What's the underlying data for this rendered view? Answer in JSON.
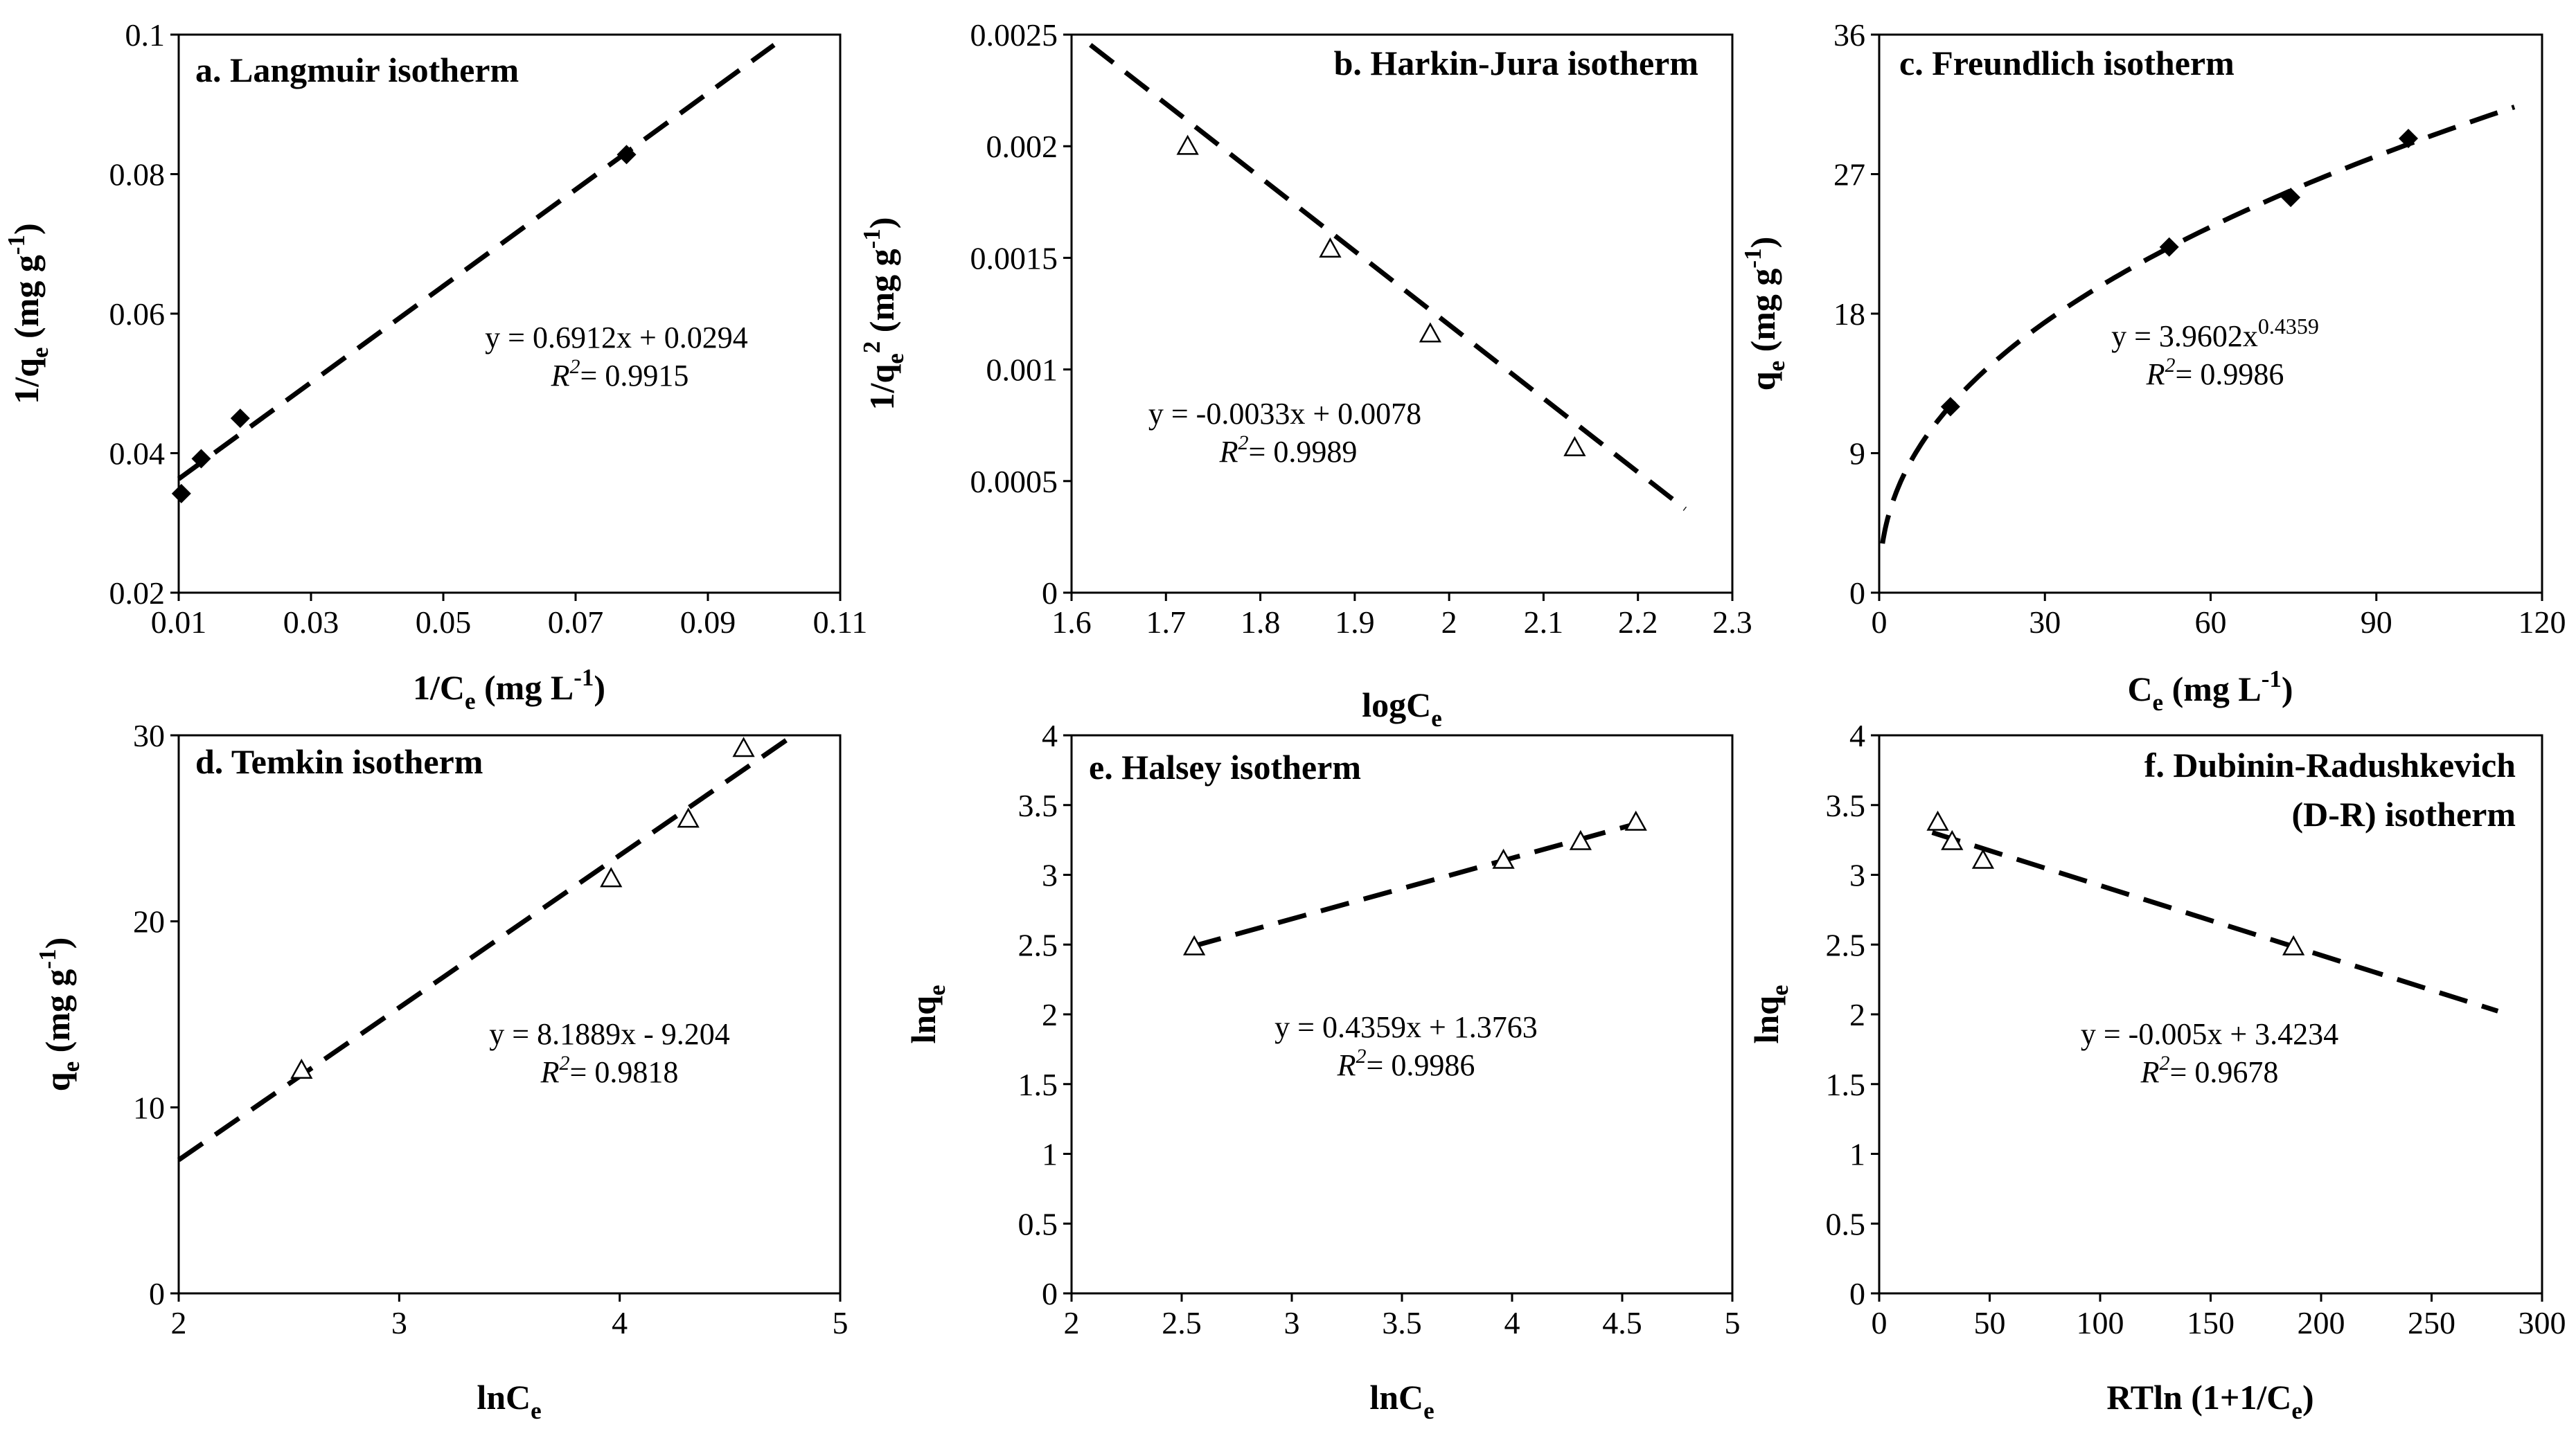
{
  "chart_data": [
    {
      "id": "a",
      "type": "scatter",
      "title": "a. Langmuir isotherm",
      "xlabel": {
        "main": "1/C",
        "sub": "e",
        "rest": " (mg L",
        "sup": "-1",
        "end": ")"
      },
      "ylabel": {
        "main": "1/q",
        "sub": "e",
        "rest": " (mg g",
        "sup": "-1",
        "end": ")"
      },
      "xlim": [
        0.01,
        0.11
      ],
      "ylim": [
        0.02,
        0.1
      ],
      "xticks": [
        "0.01",
        "0.03",
        "0.05",
        "0.07",
        "0.09",
        "0.11"
      ],
      "yticks": [
        "0.02",
        "0.04",
        "0.06",
        "0.08",
        "0.1"
      ],
      "marker": "diamond",
      "points": [
        {
          "x": 0.0104,
          "y": 0.0342
        },
        {
          "x": 0.0134,
          "y": 0.0392
        },
        {
          "x": 0.0193,
          "y": 0.045
        },
        {
          "x": 0.0777,
          "y": 0.0828
        }
      ],
      "fit": {
        "kind": "linear",
        "slope": 0.6912,
        "intercept": 0.0294,
        "xrange": [
          0.01,
          0.1
        ]
      },
      "equation": {
        "pre": "y = 0.6912x + 0.0294",
        "sup": ""
      },
      "r2": "= 0.9915"
    },
    {
      "id": "b",
      "type": "scatter",
      "title": "b. Harkin-Jura isotherm",
      "xlabel": {
        "main": "logC",
        "sub": "e",
        "rest": "",
        "sup": "",
        "end": ""
      },
      "ylabel": {
        "main": "1/q",
        "sub": "e",
        "rest": " (mg g",
        "sup": "-1",
        "end": ")",
        "sup2": "2"
      },
      "xlim": [
        1.6,
        2.3
      ],
      "ylim": [
        0,
        0.0025
      ],
      "xticks": [
        "1.6",
        "1.7",
        "1.8",
        "1.9",
        "2",
        "2.1",
        "2.2",
        "2.3"
      ],
      "yticks": [
        "0",
        "0.0005",
        "0.001",
        "0.0015",
        "0.002",
        "0.0025"
      ],
      "marker": "triangle",
      "points": [
        {
          "x": 1.723,
          "y": 0.002
        },
        {
          "x": 1.874,
          "y": 0.00154
        },
        {
          "x": 1.98,
          "y": 0.00116
        },
        {
          "x": 2.133,
          "y": 0.00065
        }
      ],
      "fit": {
        "kind": "linear",
        "slope": -0.0033,
        "intercept": 0.0078,
        "xrange": [
          1.62,
          2.25
        ]
      },
      "equation": {
        "pre": "y = -0.0033x + 0.0078",
        "sup": ""
      },
      "r2": "= 0.9989"
    },
    {
      "id": "c",
      "type": "scatter",
      "title": "c. Freundlich isotherm",
      "xlabel": {
        "main": "C",
        "sub": "e",
        "rest": " (mg L",
        "sup": "-1",
        "end": ")"
      },
      "ylabel": {
        "main": "q",
        "sub": "e",
        "rest": " (mg g",
        "sup": "-1",
        "end": ")"
      },
      "xlim": [
        0,
        120
      ],
      "ylim": [
        0,
        36
      ],
      "xticks": [
        "0",
        "30",
        "60",
        "90",
        "120"
      ],
      "yticks": [
        "0",
        "9",
        "18",
        "27",
        "36"
      ],
      "marker": "diamond",
      "points": [
        {
          "x": 12.9,
          "y": 12.0
        },
        {
          "x": 52.5,
          "y": 22.3
        },
        {
          "x": 74.5,
          "y": 25.5
        },
        {
          "x": 95.8,
          "y": 29.3
        }
      ],
      "fit": {
        "kind": "power",
        "a": 3.9602,
        "b": 0.4359,
        "xrange": [
          0.6,
          115
        ]
      },
      "equation": {
        "pre": "y = 3.9602x",
        "sup": "0.4359"
      },
      "r2": "= 0.9986"
    },
    {
      "id": "d",
      "type": "scatter",
      "title": "d. Temkin isotherm",
      "xlabel": {
        "main": "lnC",
        "sub": "e",
        "rest": "",
        "sup": "",
        "end": ""
      },
      "ylabel": {
        "main": "q",
        "sub": "e",
        "rest": " (mg g",
        "sup": "-1",
        "end": ")"
      },
      "xlim": [
        2,
        5
      ],
      "ylim": [
        0,
        30
      ],
      "xticks": [
        "2",
        "3",
        "4",
        "5"
      ],
      "yticks": [
        "0",
        "10",
        "20",
        "30"
      ],
      "marker": "triangle",
      "points": [
        {
          "x": 2.557,
          "y": 12.0
        },
        {
          "x": 3.961,
          "y": 22.3
        },
        {
          "x": 4.311,
          "y": 25.5
        },
        {
          "x": 4.562,
          "y": 29.3
        }
      ],
      "fit": {
        "kind": "linear",
        "slope": 8.1889,
        "intercept": -9.204,
        "xrange": [
          2.0,
          4.78
        ]
      },
      "equation": {
        "pre": "y = 8.1889x - 9.204",
        "sup": ""
      },
      "r2": "= 0.9818"
    },
    {
      "id": "e",
      "type": "scatter",
      "title": "e. Halsey isotherm",
      "xlabel": {
        "main": "lnC",
        "sub": "e",
        "rest": "",
        "sup": "",
        "end": ""
      },
      "ylabel": {
        "main": "lnq",
        "sub": "e",
        "rest": "",
        "sup": "",
        "end": ""
      },
      "xlim": [
        2,
        5
      ],
      "ylim": [
        0,
        4
      ],
      "xticks": [
        "2",
        "2.5",
        "3",
        "3.5",
        "4",
        "4.5",
        "5"
      ],
      "yticks": [
        "0",
        "0.5",
        "1",
        "1.5",
        "2",
        "2.5",
        "3",
        "3.5",
        "4"
      ],
      "marker": "triangle",
      "points": [
        {
          "x": 2.557,
          "y": 2.485
        },
        {
          "x": 3.961,
          "y": 3.105
        },
        {
          "x": 4.311,
          "y": 3.239
        },
        {
          "x": 4.562,
          "y": 3.378
        }
      ],
      "fit": {
        "kind": "linear",
        "slope": 0.4359,
        "intercept": 1.3763,
        "xrange": [
          2.55,
          4.56
        ]
      },
      "equation": {
        "pre": "y = 0.4359x + 1.3763",
        "sup": ""
      },
      "r2": "= 0.9986"
    },
    {
      "id": "f",
      "type": "scatter",
      "title": "f. Dubinin-Radushkevich",
      "title2": "(D-R) isotherm",
      "xlabel": {
        "main": "RTln (1+1/C",
        "sub": "e",
        "rest": ")",
        "sup": "",
        "end": ""
      },
      "ylabel": {
        "main": "lnq",
        "sub": "e",
        "rest": "",
        "sup": "",
        "end": ""
      },
      "xlim": [
        0,
        300
      ],
      "ylim": [
        0,
        4
      ],
      "xticks": [
        "0",
        "50",
        "100",
        "150",
        "200",
        "250",
        "300"
      ],
      "yticks": [
        "0",
        "0.5",
        "1",
        "1.5",
        "2",
        "2.5",
        "3",
        "3.5",
        "4"
      ],
      "marker": "triangle",
      "points": [
        {
          "x": 26.5,
          "y": 3.378
        },
        {
          "x": 33.0,
          "y": 3.239
        },
        {
          "x": 47.0,
          "y": 3.105
        },
        {
          "x": 187.5,
          "y": 2.485
        }
      ],
      "fit": {
        "kind": "linear",
        "slope": -0.005,
        "intercept": 3.4234,
        "xrange": [
          24,
          280
        ]
      },
      "equation": {
        "pre": "y = -0.005x + 3.4234",
        "sup": ""
      },
      "r2": "= 0.9678"
    }
  ]
}
